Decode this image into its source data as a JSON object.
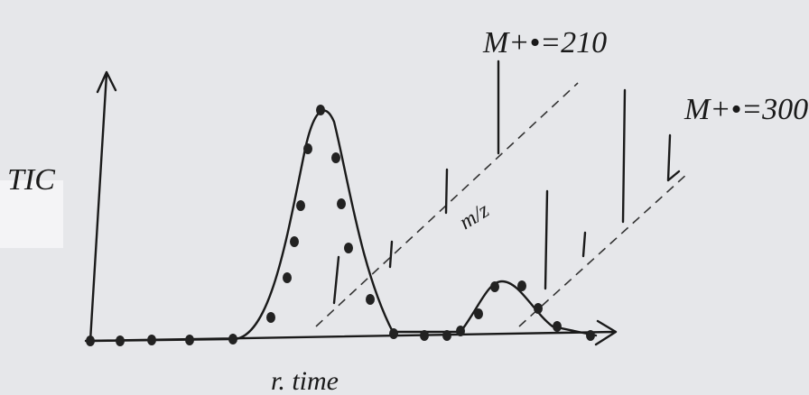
{
  "y_axis_label": "TIC",
  "x_axis_label": "r. time",
  "spectrum_axis_label": "m/z",
  "annotations": [
    "M+•=210",
    "M+•=300"
  ]
}
